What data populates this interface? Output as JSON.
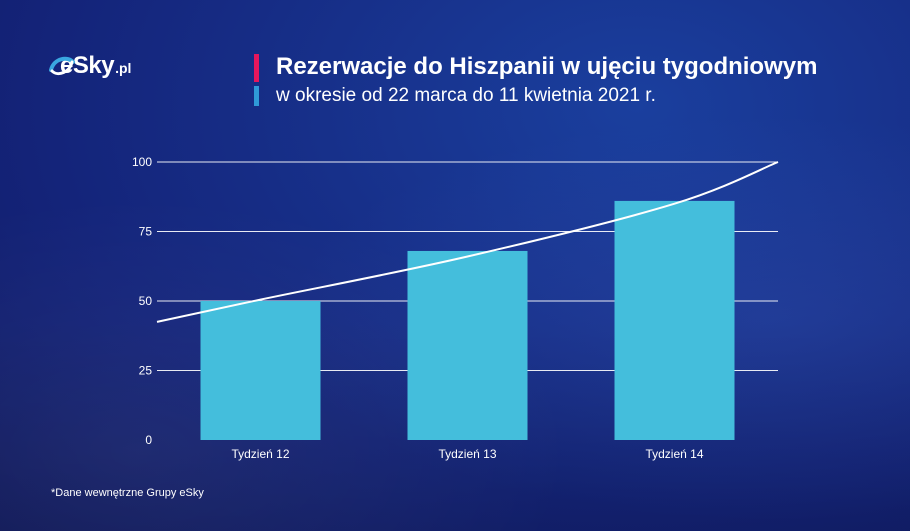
{
  "brand": {
    "logo_text": "eSky",
    "logo_domain": ".pl"
  },
  "header": {
    "title": "Rezerwacje do Hiszpanii w ujęciu tygodniowym",
    "subtitle": "w okresie od 22 marca do 11 kwietnia 2021 r."
  },
  "footnote": "*Dane wewnętrzne Grupy eSky",
  "colors": {
    "bar": "#44bedc",
    "accent_pink": "#e5175d",
    "accent_blue": "#2f9ad8",
    "trendline": "#ffffff",
    "gridline": "#ffffff"
  },
  "chart_data": {
    "type": "bar",
    "categories": [
      "Tydzień 12",
      "Tydzień 13",
      "Tydzień 14"
    ],
    "values": [
      50,
      68,
      86
    ],
    "yticks": [
      "0",
      "25",
      "50",
      "75",
      "100"
    ],
    "ylim": [
      0,
      100
    ],
    "trendline": {
      "type": "exponential",
      "x": [
        0.5,
        1,
        2,
        3,
        3.5
      ],
      "y": [
        42.5,
        50.5,
        66,
        85,
        100
      ]
    },
    "grid": true,
    "legend": "none"
  }
}
